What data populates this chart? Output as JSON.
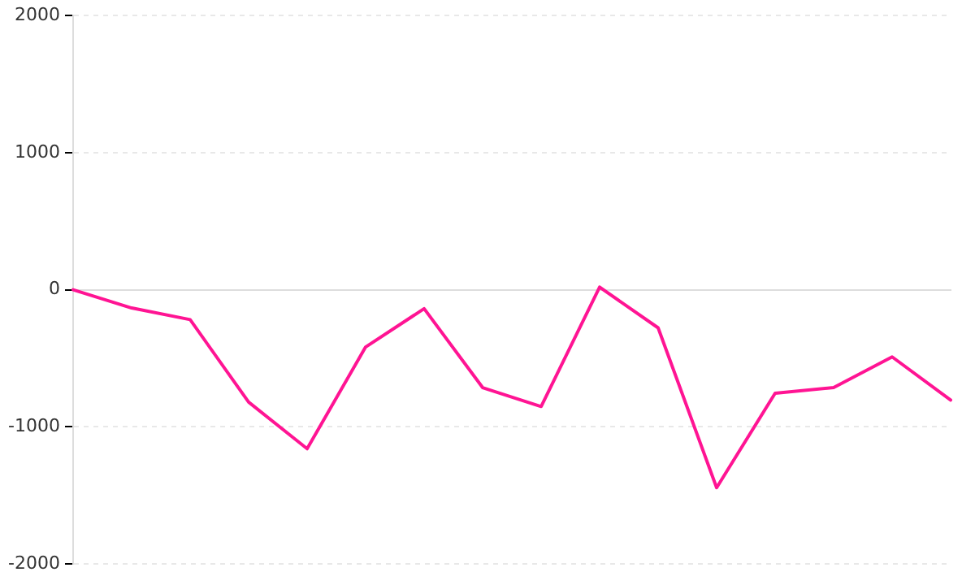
{
  "chart_data": {
    "type": "line",
    "categories": [
      null,
      null,
      null,
      null,
      null,
      null,
      null,
      null,
      null,
      null,
      null,
      null,
      null,
      null,
      null,
      null
    ],
    "series": [
      {
        "color": "#ff1493",
        "values": [
          0,
          -133,
          -218,
          -820,
          -1160,
          -418,
          -138,
          -714,
          -852,
          19,
          -278,
          -1444,
          -755,
          -714,
          -490,
          -805
        ]
      }
    ],
    "ylim": [
      -2000,
      2000
    ],
    "yticks": [
      -2000,
      -1000,
      0,
      1000,
      2000
    ],
    "grid": "y",
    "legend": false,
    "marker": "none",
    "line_style": "solid",
    "tick_labels": "y"
  }
}
